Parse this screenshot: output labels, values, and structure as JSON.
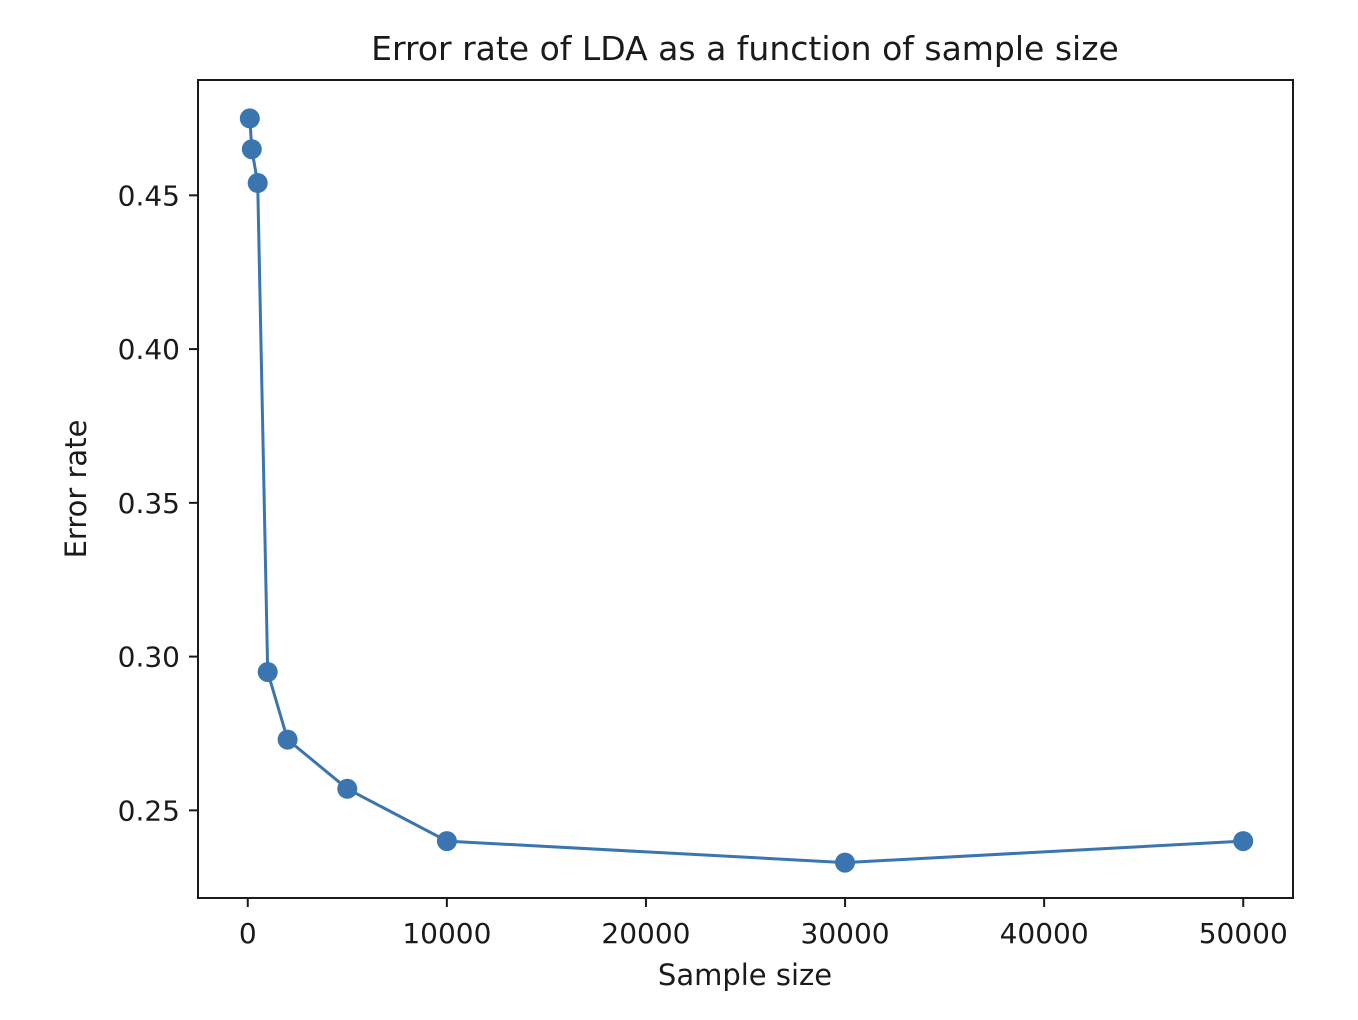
{
  "chart_data": {
    "type": "line",
    "title": "Error rate of LDA as a function of sample size",
    "xlabel": "Sample size",
    "ylabel": "Error rate",
    "xlim": [
      -2500,
      52500
    ],
    "ylim": [
      0.2215,
      0.4875
    ],
    "x_ticks": [
      0,
      10000,
      20000,
      30000,
      40000,
      50000
    ],
    "x_tick_labels": [
      "0",
      "10000",
      "20000",
      "30000",
      "40000",
      "50000"
    ],
    "y_ticks": [
      0.25,
      0.3,
      0.35,
      0.4,
      0.45
    ],
    "y_tick_labels": [
      "0.25",
      "0.30",
      "0.35",
      "0.40",
      "0.45"
    ],
    "grid": false,
    "legend": "none",
    "series": [
      {
        "color": "#3a75b0",
        "marker": "circle",
        "x": [
          100,
          200,
          500,
          1000,
          2000,
          5000,
          10000,
          30000,
          50000
        ],
        "y": [
          0.475,
          0.465,
          0.454,
          0.295,
          0.273,
          0.257,
          0.24,
          0.233,
          0.24
        ]
      }
    ]
  }
}
